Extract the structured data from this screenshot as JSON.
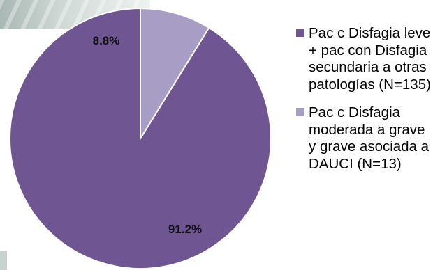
{
  "chart_data": {
    "type": "pie",
    "slices": [
      {
        "name": "Pac c Disfagia leve + pac con Disfagia secundaria a otras patologías (N=135)",
        "value": 91.2,
        "label": "91.2%",
        "color": "#6f5693"
      },
      {
        "name": "Pac c Disfagia moderada a grave y grave asociada a DAUCI (N=13)",
        "value": 8.8,
        "label": "8.8%",
        "color": "#a89ec5"
      }
    ],
    "legend_position": "right"
  }
}
